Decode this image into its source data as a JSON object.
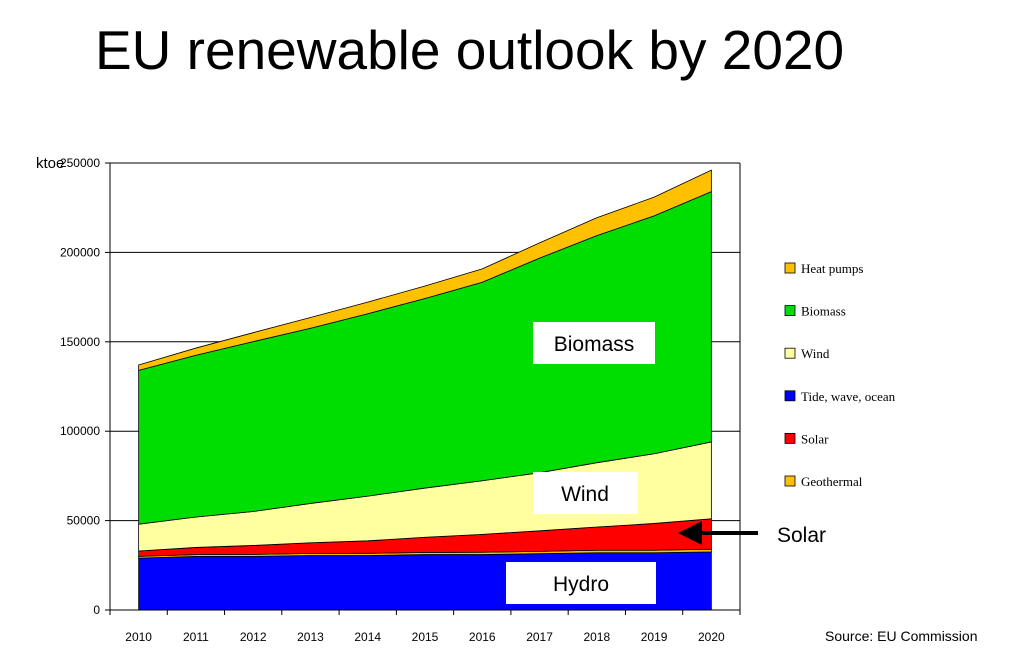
{
  "title": "EU renewable outlook by 2020",
  "source": "Source: EU Commission",
  "annotations": {
    "biomass": "Biomass",
    "wind": "Wind",
    "hydro": "Hydro",
    "solar_arrow": "Solar"
  },
  "chart_data": {
    "type": "area",
    "stacked": true,
    "title": "EU renewable outlook by 2020",
    "xlabel": "",
    "ylabel": "ktoe",
    "x": [
      "2010",
      "2011",
      "2012",
      "2013",
      "2014",
      "2015",
      "2016",
      "2017",
      "2018",
      "2019",
      "2020"
    ],
    "ylim": [
      0,
      250000
    ],
    "yticks": [
      0,
      50000,
      100000,
      150000,
      200000,
      250000
    ],
    "ytick_labels": [
      "0",
      "50000",
      "100000",
      "150000",
      "200000",
      "250000"
    ],
    "grid": true,
    "legend_position": "right",
    "series": [
      {
        "name": "Hydro",
        "color": "#0000ff",
        "values": [
          29000,
          30000,
          30000,
          30500,
          30500,
          31000,
          31000,
          31500,
          32000,
          32000,
          32500
        ]
      },
      {
        "name": "Geothermal",
        "color": "#ffc000",
        "values": [
          1000,
          1000,
          1100,
          1100,
          1200,
          1200,
          1300,
          1300,
          1400,
          1400,
          1500
        ]
      },
      {
        "name": "Solar",
        "color": "#ff0000",
        "values": [
          3000,
          4000,
          5000,
          6000,
          7000,
          8500,
          10000,
          11500,
          13000,
          15000,
          17000
        ]
      },
      {
        "name": "Tide, wave, ocean",
        "color": "#0000ff",
        "values": [
          0,
          0,
          0,
          0,
          0,
          0,
          0,
          0,
          0,
          0,
          0
        ]
      },
      {
        "name": "Wind",
        "color": "#ffffa0",
        "values": [
          15000,
          17000,
          19000,
          22000,
          25000,
          27500,
          30000,
          32500,
          36000,
          39000,
          43000
        ]
      },
      {
        "name": "Biomass",
        "color": "#00dd00",
        "values": [
          86000,
          90500,
          95000,
          98000,
          102000,
          106000,
          111000,
          120000,
          127000,
          133000,
          140000
        ]
      },
      {
        "name": "Heat pumps",
        "color": "#ffc000",
        "values": [
          3000,
          4000,
          5000,
          6000,
          6500,
          7000,
          7500,
          8500,
          10000,
          10500,
          12000
        ]
      }
    ],
    "legend": [
      "Heat pumps",
      "Biomass",
      "Wind",
      "Tide, wave, ocean",
      "Solar",
      "Geothermal"
    ],
    "legend_colors": [
      "#ffc000",
      "#00dd00",
      "#ffffa0",
      "#0000ff",
      "#ff0000",
      "#ffc000"
    ]
  }
}
